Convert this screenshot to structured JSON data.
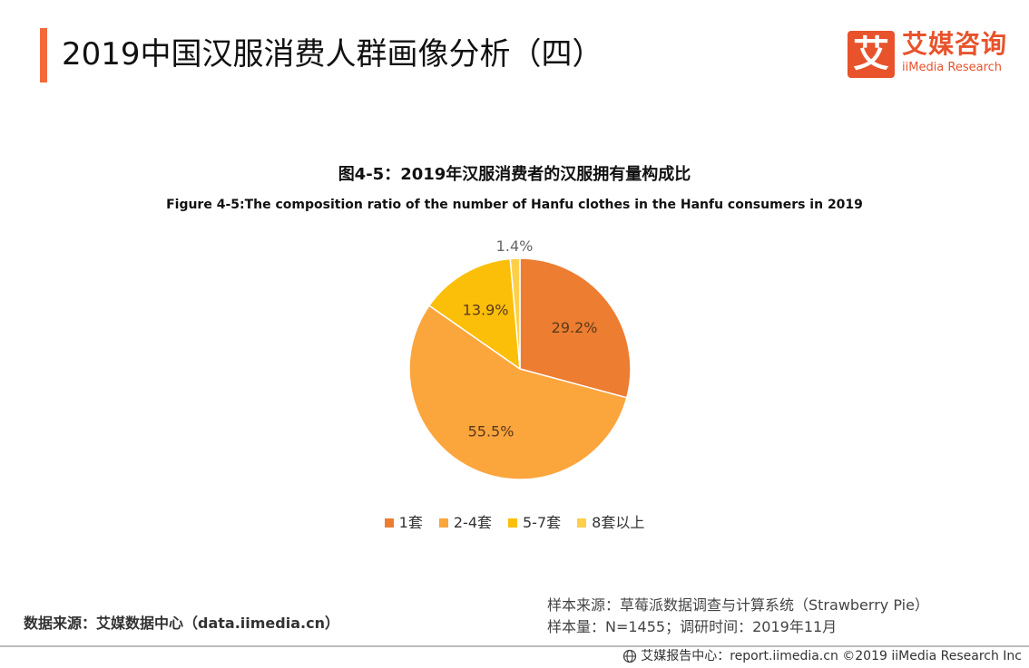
{
  "page": {
    "title": "2019中国汉服消费人群画像分析（四）"
  },
  "logo": {
    "mark": "艾",
    "name_cn": "艾媒咨询",
    "name_en": "iiMedia Research"
  },
  "chart_data": {
    "type": "pie",
    "title": "图4-5：2019年汉服消费者的汉服拥有量构成比",
    "subtitle": "Figure 4-5:The composition ratio of the number of Hanfu clothes in the Hanfu consumers in 2019",
    "categories": [
      "1套",
      "2-4套",
      "5-7套",
      "8套以上"
    ],
    "values": [
      29.2,
      55.5,
      13.9,
      1.4
    ],
    "labels": [
      "29.2%",
      "55.5%",
      "13.9%",
      "1.4%"
    ],
    "colors": [
      "#ed7d31",
      "#fba53d",
      "#fbbf0a",
      "#ffcf4a"
    ],
    "start_angle_deg": 0,
    "direction": "clockwise",
    "legend_position": "bottom"
  },
  "footer": {
    "source": "数据来源：艾媒数据中心（data.iimedia.cn）",
    "sample_source": "样本来源：草莓派数据调查与计算系统（Strawberry Pie）",
    "sample_info": "样本量：N=1455；调研时间：2019年11月",
    "copyright": "艾媒报告中心：report.iimedia.cn ©2019 iiMedia Research Inc",
    "globe_icon": "globe-icon"
  }
}
